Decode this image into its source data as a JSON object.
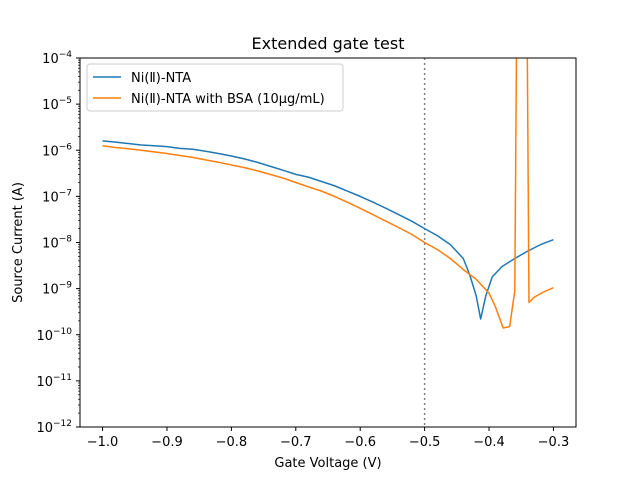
{
  "chart_data": {
    "type": "line",
    "title": "Extended gate test",
    "xlabel": "Gate Voltage (V)",
    "ylabel": "Source Current (A)",
    "xlim": [
      -1.035,
      -0.265
    ],
    "ylim_log10": [
      -12,
      -4
    ],
    "yscale": "log",
    "grid": false,
    "legend_placement": "top-left",
    "x_ticks": [
      -1.0,
      -0.9,
      -0.8,
      -0.7,
      -0.6,
      -0.5,
      -0.4,
      -0.3
    ],
    "x_tick_labels": [
      "−1.0",
      "−0.9",
      "−0.8",
      "−0.7",
      "−0.6",
      "−0.5",
      "−0.4",
      "−0.3"
    ],
    "y_ticks_exp": [
      -12,
      -11,
      -10,
      -9,
      -8,
      -7,
      -6,
      -5,
      -4
    ],
    "y_tick_base": "10",
    "y_tick_exponents": [
      "−12",
      "−11",
      "−10",
      "−9",
      "−8",
      "−7",
      "−6",
      "−5",
      "−4"
    ],
    "vline": {
      "x": -0.5,
      "color": "#7f7f7f",
      "style": "dotted"
    },
    "series": [
      {
        "name": "Ni(Ⅱ)-NTA",
        "color": "#1f77b4",
        "points": [
          [
            -1.0,
            1.6e-06
          ],
          [
            -0.98,
            1.5e-06
          ],
          [
            -0.96,
            1.4e-06
          ],
          [
            -0.94,
            1.3e-06
          ],
          [
            -0.92,
            1.25e-06
          ],
          [
            -0.9,
            1.2e-06
          ],
          [
            -0.88,
            1.1e-06
          ],
          [
            -0.86,
            1.05e-06
          ],
          [
            -0.84,
            9.5e-07
          ],
          [
            -0.82,
            8.5e-07
          ],
          [
            -0.8,
            7.5e-07
          ],
          [
            -0.78,
            6.5e-07
          ],
          [
            -0.76,
            5.5e-07
          ],
          [
            -0.74,
            4.5e-07
          ],
          [
            -0.72,
            3.7e-07
          ],
          [
            -0.7,
            3e-07
          ],
          [
            -0.68,
            2.6e-07
          ],
          [
            -0.66,
            2.1e-07
          ],
          [
            -0.64,
            1.7e-07
          ],
          [
            -0.62,
            1.3e-07
          ],
          [
            -0.6,
            1e-07
          ],
          [
            -0.58,
            7.5e-08
          ],
          [
            -0.56,
            5.5e-08
          ],
          [
            -0.54,
            4e-08
          ],
          [
            -0.52,
            2.9e-08
          ],
          [
            -0.5,
            2e-08
          ],
          [
            -0.48,
            1.4e-08
          ],
          [
            -0.46,
            9e-09
          ],
          [
            -0.44,
            4.5e-09
          ],
          [
            -0.43,
            2e-09
          ],
          [
            -0.42,
            7e-10
          ],
          [
            -0.413,
            2.2e-10
          ],
          [
            -0.405,
            7e-10
          ],
          [
            -0.395,
            1.8e-09
          ],
          [
            -0.38,
            3e-09
          ],
          [
            -0.36,
            4.5e-09
          ],
          [
            -0.34,
            6.5e-09
          ],
          [
            -0.32,
            9e-09
          ],
          [
            -0.3,
            1.15e-08
          ]
        ]
      },
      {
        "name": "Ni(Ⅱ)-NTA with BSA (10µg/mL)",
        "color": "#ff7f0e",
        "points": [
          [
            -1.0,
            1.25e-06
          ],
          [
            -0.98,
            1.15e-06
          ],
          [
            -0.96,
            1.08e-06
          ],
          [
            -0.94,
            1e-06
          ],
          [
            -0.92,
            9.2e-07
          ],
          [
            -0.9,
            8.5e-07
          ],
          [
            -0.88,
            7.7e-07
          ],
          [
            -0.86,
            7e-07
          ],
          [
            -0.84,
            6.2e-07
          ],
          [
            -0.82,
            5.5e-07
          ],
          [
            -0.8,
            4.8e-07
          ],
          [
            -0.78,
            4.2e-07
          ],
          [
            -0.76,
            3.6e-07
          ],
          [
            -0.74,
            3e-07
          ],
          [
            -0.72,
            2.5e-07
          ],
          [
            -0.7,
            2e-07
          ],
          [
            -0.68,
            1.6e-07
          ],
          [
            -0.66,
            1.3e-07
          ],
          [
            -0.64,
            1e-07
          ],
          [
            -0.62,
            7.5e-08
          ],
          [
            -0.6,
            5.5e-08
          ],
          [
            -0.58,
            4e-08
          ],
          [
            -0.56,
            2.9e-08
          ],
          [
            -0.54,
            2.1e-08
          ],
          [
            -0.52,
            1.5e-08
          ],
          [
            -0.5,
            1e-08
          ],
          [
            -0.48,
            7e-09
          ],
          [
            -0.46,
            4.5e-09
          ],
          [
            -0.44,
            2.6e-09
          ],
          [
            -0.42,
            1.6e-09
          ],
          [
            -0.4,
            8e-10
          ],
          [
            -0.39,
            4e-10
          ],
          [
            -0.378,
            1.4e-10
          ],
          [
            -0.368,
            1.5e-10
          ],
          [
            -0.36,
            9e-10
          ],
          [
            -0.357,
            0.001
          ],
          [
            -0.341,
            0.001
          ],
          [
            -0.338,
            5e-10
          ],
          [
            -0.33,
            6.5e-10
          ],
          [
            -0.315,
            8.5e-10
          ],
          [
            -0.3,
            1.05e-09
          ]
        ]
      }
    ]
  }
}
